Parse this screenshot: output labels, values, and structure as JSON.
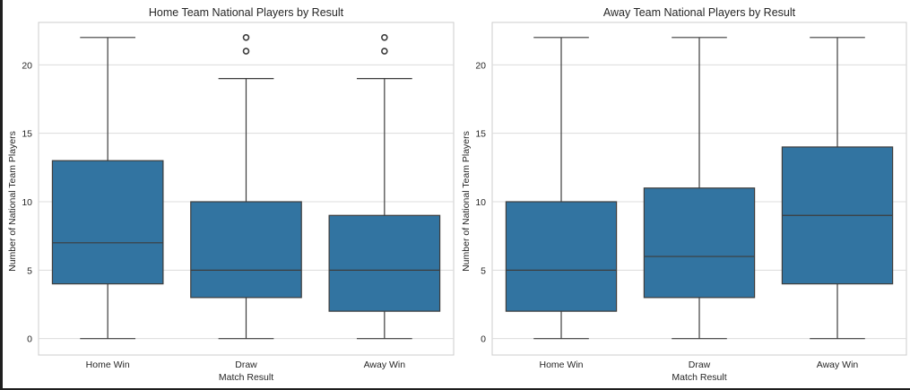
{
  "colors": {
    "box_fill": "#3274a1",
    "line": "#3d3d3d",
    "grid": "#dcdcdc",
    "frame": "#cccccc",
    "background": "#ffffff"
  },
  "chart_data": [
    {
      "type": "box",
      "title": "Home Team National Players by Result",
      "xlabel": "Match Result",
      "ylabel": "Number of National Team Players",
      "ylim": [
        -1.2,
        23.1
      ],
      "yticks": [
        0,
        5,
        10,
        15,
        20
      ],
      "grid": true,
      "categories": [
        "Home Win",
        "Draw",
        "Away Win"
      ],
      "boxes": [
        {
          "category": "Home Win",
          "whisker_low": 0,
          "q1": 4,
          "median": 7,
          "q3": 13,
          "whisker_high": 22,
          "outliers": []
        },
        {
          "category": "Draw",
          "whisker_low": 0,
          "q1": 3,
          "median": 5,
          "q3": 10,
          "whisker_high": 19,
          "outliers": [
            21,
            22
          ]
        },
        {
          "category": "Away Win",
          "whisker_low": 0,
          "q1": 2,
          "median": 5,
          "q3": 9,
          "whisker_high": 19,
          "outliers": [
            21,
            22
          ]
        }
      ]
    },
    {
      "type": "box",
      "title": "Away Team National Players by Result",
      "xlabel": "Match Result",
      "ylabel": "Number of National Team Players",
      "ylim": [
        -1.2,
        23.1
      ],
      "yticks": [
        0,
        5,
        10,
        15,
        20
      ],
      "grid": true,
      "categories": [
        "Home Win",
        "Draw",
        "Away Win"
      ],
      "boxes": [
        {
          "category": "Home Win",
          "whisker_low": 0,
          "q1": 2,
          "median": 5,
          "q3": 10,
          "whisker_high": 22,
          "outliers": []
        },
        {
          "category": "Draw",
          "whisker_low": 0,
          "q1": 3,
          "median": 6,
          "q3": 11,
          "whisker_high": 22,
          "outliers": []
        },
        {
          "category": "Away Win",
          "whisker_low": 0,
          "q1": 4,
          "median": 9,
          "q3": 14,
          "whisker_high": 22,
          "outliers": []
        }
      ]
    }
  ]
}
